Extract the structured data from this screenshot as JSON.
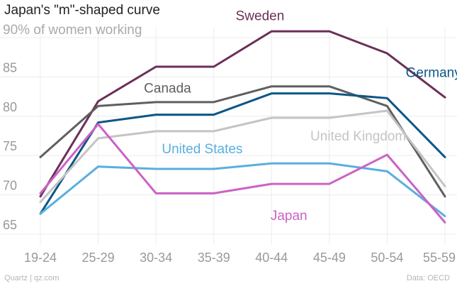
{
  "title": "Japan's \"m\"-shaped curve",
  "footer": {
    "source": "Quartz | qz.com",
    "data": "Data: OECD"
  },
  "chart_data": {
    "type": "line",
    "title": "Japan's \"m\"-shaped curve",
    "ylabel": "90% of women working",
    "xlabel": "",
    "categories": [
      "19-24",
      "25-29",
      "30-34",
      "35-39",
      "40-44",
      "45-49",
      "50-54",
      "55-59"
    ],
    "ylim": [
      65,
      90
    ],
    "yticks": [
      65,
      70,
      75,
      80,
      85
    ],
    "grid": true,
    "legend": "inline",
    "series": [
      {
        "name": "Sweden",
        "color": "#6b2f57",
        "values": [
          69.8,
          81.9,
          86.3,
          86.3,
          90.8,
          90.8,
          88.0,
          82.4
        ]
      },
      {
        "name": "Canada",
        "color": "#5f5f5f",
        "values": [
          74.8,
          81.3,
          81.8,
          81.8,
          83.8,
          83.8,
          81.3,
          69.8
        ]
      },
      {
        "name": "Germany",
        "color": "#0c5786",
        "values": [
          67.6,
          79.2,
          80.2,
          80.2,
          82.9,
          82.9,
          82.3,
          74.8
        ]
      },
      {
        "name": "United Kingdom",
        "color": "#c4c4c4",
        "values": [
          69.1,
          77.2,
          78.1,
          78.1,
          79.8,
          79.8,
          80.7,
          71.1
        ]
      },
      {
        "name": "United States",
        "color": "#5aaee0",
        "values": [
          67.6,
          73.6,
          73.3,
          73.3,
          74.0,
          74.0,
          73.0,
          67.3
        ]
      },
      {
        "name": "Japan",
        "color": "#cc62c6",
        "values": [
          70.2,
          79.0,
          70.2,
          70.2,
          71.4,
          71.4,
          75.1,
          66.5
        ]
      }
    ]
  }
}
